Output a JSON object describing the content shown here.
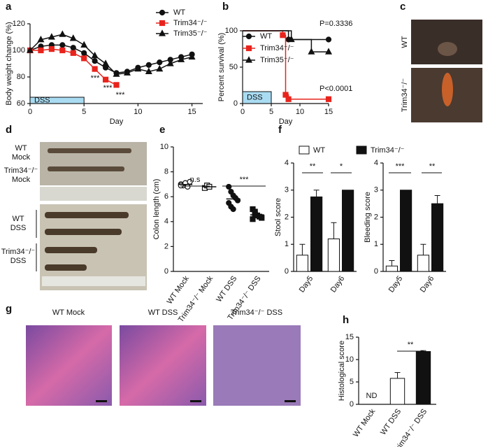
{
  "panel_labels": [
    "a",
    "b",
    "c",
    "d",
    "e",
    "f",
    "g",
    "h"
  ],
  "panel_c": {
    "labels": [
      "WT",
      "Trim34⁻/⁻"
    ]
  },
  "panel_d": {
    "labels": [
      [
        "WT",
        "Mock"
      ],
      [
        "Trim34⁻/⁻",
        "Mock"
      ],
      [
        "WT",
        "DSS"
      ],
      [
        "Trim34⁻/⁻",
        "DSS"
      ]
    ]
  },
  "panel_g": {
    "titles": [
      "WT Mock",
      "WT DSS",
      "Trim34⁻/⁻ DSS"
    ]
  },
  "chart_data": [
    {
      "type": "line",
      "xlabel": "Day",
      "ylabel": "Body weight change (%)",
      "x": [
        0,
        1,
        2,
        3,
        4,
        5,
        6,
        7,
        8,
        9,
        10,
        11,
        12,
        13,
        14,
        15
      ],
      "xlim": [
        0,
        16
      ],
      "xticks": [
        0,
        5,
        10,
        15
      ],
      "ylim": [
        60,
        120
      ],
      "yticks": [
        60,
        80,
        100,
        120
      ],
      "band": {
        "label": "DSS",
        "x": [
          0,
          5
        ]
      },
      "annotations": [
        "***",
        "***",
        "***"
      ],
      "series": [
        {
          "name": "WT",
          "color": "#111111",
          "marker": "circle",
          "values": [
            100,
            103,
            104,
            104,
            102,
            98,
            92,
            87,
            83,
            84,
            87,
            89,
            91,
            93,
            95,
            97
          ]
        },
        {
          "name": "Trim34⁻/⁻",
          "color": "#e8231c",
          "marker": "square",
          "values": [
            100,
            100,
            101,
            100,
            98,
            94,
            86,
            78,
            74,
            null,
            null,
            null,
            null,
            null,
            null,
            null
          ]
        },
        {
          "name": "Trim35⁻/⁻",
          "color": "#111111",
          "marker": "triangle",
          "values": [
            100,
            108,
            110,
            112,
            109,
            104,
            96,
            90,
            82,
            83,
            86,
            84,
            86,
            90,
            93,
            95
          ]
        }
      ]
    },
    {
      "type": "step",
      "xlabel": "Day",
      "ylabel": "Percent survival (%)",
      "xlim": [
        0,
        15
      ],
      "xticks": [
        0,
        5,
        10,
        15
      ],
      "ylim": [
        0,
        100
      ],
      "yticks": [
        0,
        50,
        100
      ],
      "band": {
        "label": "DSS",
        "x": [
          0,
          5
        ]
      },
      "annotations": [
        "P=0.3336",
        "P<0.0001"
      ],
      "series": [
        {
          "name": "WT",
          "color": "#111111",
          "marker": "circle",
          "x": [
            0,
            8,
            15
          ],
          "values": [
            100,
            88,
            88
          ]
        },
        {
          "name": "Trim34⁻/⁻",
          "color": "#e8231c",
          "marker": "square",
          "x": [
            0,
            7,
            7.5,
            8,
            15
          ],
          "values": [
            100,
            94,
            12,
            6,
            6
          ]
        },
        {
          "name": "Trim35⁻/⁻",
          "color": "#111111",
          "marker": "triangle",
          "x": [
            0,
            8.5,
            12,
            15
          ],
          "values": [
            100,
            88,
            71,
            71
          ]
        }
      ]
    },
    {
      "type": "dot",
      "ylabel": "Colon length (cm)",
      "categories": [
        "WT Mock",
        "Trim34⁻/⁻ Mock",
        "WT DSS",
        "Trim34⁻/⁻ DSS"
      ],
      "markers": [
        "circle-open",
        "square-open",
        "circle",
        "square"
      ],
      "color": "#111111",
      "ylim": [
        0,
        10
      ],
      "yticks": [
        0,
        2,
        4,
        6,
        8,
        10
      ],
      "groups": [
        [
          7.0,
          6.9,
          7.1,
          6.8,
          7.2,
          6.9
        ],
        [
          6.7,
          6.9,
          6.8
        ],
        [
          6.8,
          6.4,
          6.1,
          5.9,
          5.7,
          5.5,
          5.2,
          5.0
        ],
        [
          5.0,
          4.8,
          4.5,
          4.4,
          4.3,
          4.2,
          4.6
        ]
      ],
      "annotations": [
        "n.s",
        "***"
      ]
    },
    {
      "type": "grouped-bar",
      "ylabel": "Stool score",
      "categories": [
        "Day5",
        "Day6"
      ],
      "ylim": [
        0,
        4
      ],
      "yticks": [
        0,
        1,
        2,
        3,
        4
      ],
      "series": [
        {
          "name": "WT",
          "color": "#ffffff",
          "values": [
            0.6,
            1.2
          ],
          "errors": [
            0.4,
            0.6
          ]
        },
        {
          "name": "Trim34⁻/⁻",
          "color": "#111111",
          "values": [
            2.75,
            3.0
          ],
          "errors": [
            0.25,
            0
          ]
        }
      ],
      "annotations": [
        "**",
        "*"
      ]
    },
    {
      "type": "grouped-bar",
      "ylabel": "Bleeding score",
      "categories": [
        "Day5",
        "Day6"
      ],
      "ylim": [
        0,
        4
      ],
      "yticks": [
        0,
        1,
        2,
        3,
        4
      ],
      "series": [
        {
          "color": "#ffffff",
          "values": [
            0.2,
            0.6
          ],
          "errors": [
            0.2,
            0.4
          ]
        },
        {
          "color": "#111111",
          "values": [
            3.0,
            2.5
          ],
          "errors": [
            0,
            0.3
          ]
        }
      ],
      "annotations": [
        "***",
        "**"
      ]
    },
    {
      "type": "bar",
      "ylabel": "Histological score",
      "categories": [
        "WT Mock",
        "WT DSS",
        "Trim34⁻/⁻ DSS"
      ],
      "colors": [
        "#ffffff",
        "#ffffff",
        "#111111"
      ],
      "values": [
        null,
        5.8,
        11.8
      ],
      "errors": [
        null,
        1.3,
        0.2
      ],
      "value_labels": [
        "ND",
        null,
        null
      ],
      "ylim": [
        0,
        15
      ],
      "yticks": [
        0,
        5,
        10,
        15
      ],
      "annotations": [
        "**"
      ]
    }
  ]
}
